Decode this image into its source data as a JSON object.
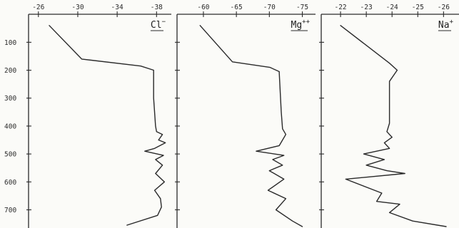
{
  "chart_data": [
    {
      "type": "line",
      "ion": {
        "base": "Cl",
        "sup": "−"
      },
      "x_ticks": [
        "-26",
        "-30",
        "-34",
        "-38"
      ],
      "x_tick_values": [
        -26,
        -30,
        -34,
        -38
      ],
      "xlim": [
        -25,
        -39.5
      ],
      "y_ticks": [
        "100",
        "200",
        "300",
        "400",
        "500",
        "600",
        "700"
      ],
      "y_tick_values": [
        100,
        200,
        300,
        400,
        500,
        600,
        700
      ],
      "ylim": [
        20,
        760
      ],
      "series": [
        {
          "x": [
            -27.1,
            -30.4,
            -36.4,
            -37.7,
            -37.7,
            -37.7,
            -37.9,
            -38.0,
            -38.6,
            -38.2,
            -38.9,
            -37.8,
            -36.8,
            -38.7,
            -37.9,
            -38.6,
            -37.9,
            -38.8,
            -37.8,
            -38.4,
            -38.5,
            -38.1,
            -35.0
          ],
          "y": [
            40,
            160,
            185,
            200,
            210,
            300,
            400,
            420,
            430,
            450,
            460,
            480,
            490,
            505,
            520,
            540,
            570,
            600,
            630,
            660,
            690,
            720,
            755
          ]
        }
      ]
    },
    {
      "type": "line",
      "ion": {
        "base": "Mg",
        "sup": "++"
      },
      "x_ticks": [
        "-60",
        "-65",
        "-70",
        "-75"
      ],
      "x_tick_values": [
        -60,
        -65,
        -70,
        -75
      ],
      "xlim": [
        -56,
        -77
      ],
      "y_ticks": [],
      "y_tick_values": [
        100,
        200,
        300,
        400,
        500,
        600,
        700
      ],
      "ylim": [
        20,
        760
      ],
      "series": [
        {
          "x": [
            -59.5,
            -64.4,
            -70.1,
            -71.5,
            -71.5,
            -71.8,
            -72.0,
            -72.5,
            -72.0,
            -71.5,
            -68.0,
            -72.2,
            -70.5,
            -72.0,
            -70.0,
            -72.2,
            -69.8,
            -72.5,
            -71.0,
            -73.5,
            -75.0
          ],
          "y": [
            40,
            170,
            190,
            205,
            210,
            350,
            410,
            430,
            450,
            470,
            490,
            505,
            520,
            540,
            560,
            590,
            630,
            660,
            700,
            740,
            760
          ]
        }
      ]
    },
    {
      "type": "line",
      "ion": {
        "base": "Na",
        "sup": "+"
      },
      "x_ticks": [
        "-22",
        "-23",
        "-24",
        "-25",
        "-26"
      ],
      "x_tick_values": [
        -22,
        -23,
        -24,
        -25,
        -26
      ],
      "xlim": [
        -21.25,
        -26.6
      ],
      "y_ticks": [],
      "y_tick_values": [
        100,
        200,
        300,
        400,
        500,
        600,
        700
      ],
      "ylim": [
        20,
        760
      ],
      "series": [
        {
          "x": [
            -22.0,
            -23.9,
            -24.2,
            -23.9,
            -23.9,
            -23.9,
            -23.8,
            -24.0,
            -23.7,
            -23.9,
            -22.9,
            -23.7,
            -23.0,
            -23.8,
            -24.5,
            -22.2,
            -23.6,
            -23.4,
            -24.3,
            -23.9,
            -24.8,
            -26.1
          ],
          "y": [
            40,
            175,
            200,
            240,
            300,
            390,
            420,
            440,
            460,
            480,
            500,
            520,
            540,
            560,
            570,
            590,
            640,
            670,
            680,
            710,
            740,
            760
          ]
        }
      ]
    }
  ]
}
